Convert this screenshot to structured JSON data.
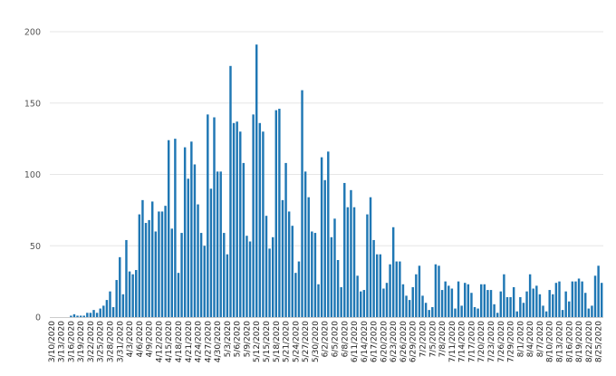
{
  "chart_data": {
    "type": "bar",
    "title": "",
    "xlabel": "",
    "ylabel": "",
    "ylim": [
      0,
      200
    ],
    "yticks": [
      0,
      50,
      100,
      150,
      200
    ],
    "grid": true,
    "bar_color": "#1f77b4",
    "start_date": "2020-03-10",
    "label_step": 3,
    "values": [
      0,
      0,
      0,
      0,
      0,
      0,
      1,
      2,
      1,
      1,
      1,
      3,
      3,
      5,
      3,
      6,
      8,
      12,
      18,
      7,
      26,
      42,
      16,
      54,
      32,
      30,
      33,
      72,
      82,
      66,
      68,
      81,
      60,
      74,
      74,
      78,
      124,
      62,
      125,
      31,
      59,
      119,
      97,
      123,
      107,
      79,
      59,
      50,
      142,
      90,
      140,
      102,
      102,
      59,
      44,
      176,
      136,
      137,
      130,
      108,
      57,
      53,
      142,
      191,
      136,
      130,
      71,
      48,
      56,
      145,
      146,
      82,
      108,
      74,
      64,
      31,
      39,
      159,
      102,
      84,
      60,
      59,
      23,
      112,
      96,
      116,
      56,
      69,
      40,
      21,
      94,
      77,
      89,
      77,
      29,
      18,
      19,
      72,
      84,
      54,
      44,
      44,
      20,
      24,
      37,
      63,
      39,
      39,
      23,
      15,
      12,
      21,
      30,
      36,
      15,
      10,
      5,
      7,
      37,
      36,
      19,
      25,
      22,
      20,
      6,
      25,
      8,
      24,
      23,
      17,
      7,
      6,
      23,
      23,
      19,
      19,
      9,
      3,
      18,
      30,
      14,
      14,
      21,
      4,
      14,
      10,
      18,
      30,
      20,
      22,
      16,
      8,
      4,
      19,
      16,
      24,
      25,
      5,
      18,
      11,
      25,
      25,
      27,
      25,
      17,
      6,
      8,
      29,
      36,
      24
    ]
  }
}
